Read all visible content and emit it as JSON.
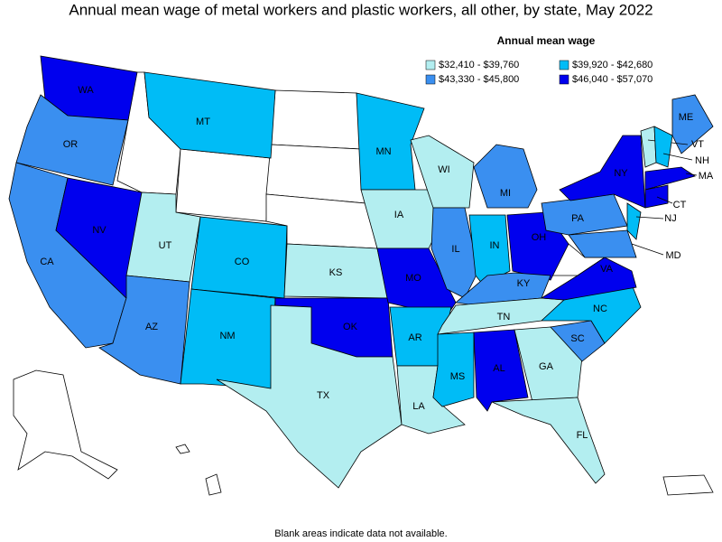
{
  "title": "Annual mean wage of metal workers and plastic workers, all other, by state, May 2022",
  "legend": {
    "title": "Annual mean wage",
    "items": [
      {
        "label": "$32,410 - $39,760",
        "color": "#b3eef0"
      },
      {
        "label": "$39,920 - $42,680",
        "color": "#00bcf6"
      },
      {
        "label": "$43,330 - $45,800",
        "color": "#3a8ff0"
      },
      {
        "label": "$46,040 - $57,070",
        "color": "#0000ee"
      }
    ]
  },
  "states": [
    {
      "label": "WA",
      "bin": 3
    },
    {
      "label": "OR",
      "bin": 2
    },
    {
      "label": "CA",
      "bin": 2
    },
    {
      "label": "NV",
      "bin": 3
    },
    {
      "label": "MT",
      "bin": 1
    },
    {
      "label": "UT",
      "bin": 0
    },
    {
      "label": "AZ",
      "bin": 2
    },
    {
      "label": "CO",
      "bin": 1
    },
    {
      "label": "NM",
      "bin": 1
    },
    {
      "label": "KS",
      "bin": 0
    },
    {
      "label": "OK",
      "bin": 3
    },
    {
      "label": "TX",
      "bin": 0
    },
    {
      "label": "MN",
      "bin": 1
    },
    {
      "label": "IA",
      "bin": 0
    },
    {
      "label": "MO",
      "bin": 3
    },
    {
      "label": "AR",
      "bin": 1
    },
    {
      "label": "LA",
      "bin": 0
    },
    {
      "label": "WI",
      "bin": 0
    },
    {
      "label": "IL",
      "bin": 2
    },
    {
      "label": "MI",
      "bin": 2
    },
    {
      "label": "IN",
      "bin": 1
    },
    {
      "label": "OH",
      "bin": 3
    },
    {
      "label": "KY",
      "bin": 2
    },
    {
      "label": "TN",
      "bin": 0
    },
    {
      "label": "MS",
      "bin": 1
    },
    {
      "label": "AL",
      "bin": 3
    },
    {
      "label": "GA",
      "bin": 0
    },
    {
      "label": "FL",
      "bin": 0
    },
    {
      "label": "SC",
      "bin": 2
    },
    {
      "label": "NC",
      "bin": 1
    },
    {
      "label": "VA",
      "bin": 3
    },
    {
      "label": "PA",
      "bin": 2
    },
    {
      "label": "NY",
      "bin": 3
    },
    {
      "label": "NJ",
      "bin": 1
    },
    {
      "label": "MD",
      "bin": 2
    },
    {
      "label": "ME",
      "bin": 2
    },
    {
      "label": "VT",
      "bin": 0
    },
    {
      "label": "NH",
      "bin": 1
    },
    {
      "label": "MA",
      "bin": 3
    },
    {
      "label": "CT",
      "bin": 3
    }
  ],
  "footnote": "Blank areas indicate data not available."
}
